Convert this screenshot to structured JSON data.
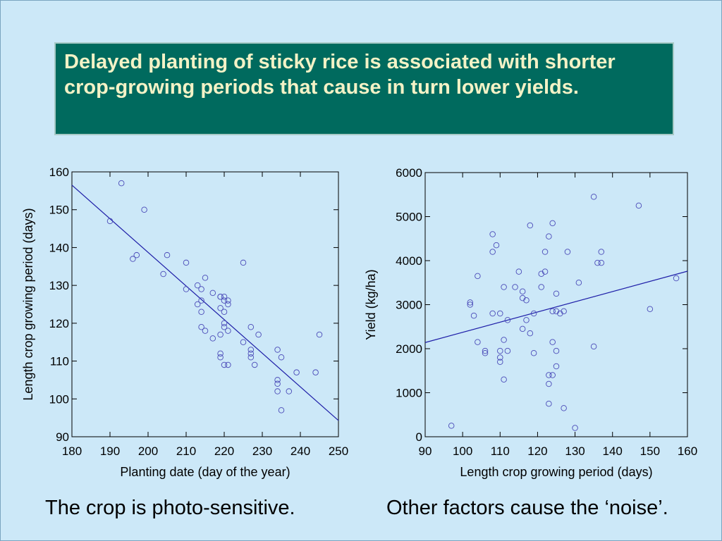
{
  "slide": {
    "title": "Delayed planting of sticky rice is associated with shorter crop-growing periods that cause in turn lower yields.",
    "caption_left": "The crop is photo-sensitive.",
    "caption_right": "Other factors cause the ‘noise’.",
    "colors": {
      "background": "#cce8f8",
      "title_box": "#006a5e",
      "title_text": "#f3f2c6",
      "marker": "#4a4ab8",
      "trend_line": "#1e1ea8"
    }
  },
  "chart_data": [
    {
      "type": "scatter",
      "title": "",
      "xlabel": "Planting date (day of the year)",
      "ylabel": "Length crop growing period (days)",
      "xlim": [
        180,
        250
      ],
      "ylim": [
        90,
        160
      ],
      "xticks": [
        180,
        190,
        200,
        210,
        220,
        230,
        240,
        250
      ],
      "yticks": [
        90,
        100,
        110,
        120,
        130,
        140,
        150,
        160
      ],
      "grid": false,
      "legend": "none",
      "marker": "open-circle",
      "trend_line": {
        "x": [
          180,
          250
        ],
        "y": [
          156.5,
          94.3
        ]
      },
      "points": [
        [
          190,
          147
        ],
        [
          193,
          157
        ],
        [
          196,
          137
        ],
        [
          197,
          138
        ],
        [
          199,
          150
        ],
        [
          204,
          133
        ],
        [
          205,
          138
        ],
        [
          210,
          136
        ],
        [
          210,
          129
        ],
        [
          213,
          130
        ],
        [
          213,
          125
        ],
        [
          214,
          126
        ],
        [
          214,
          123
        ],
        [
          214,
          129
        ],
        [
          214,
          119
        ],
        [
          215,
          132
        ],
        [
          215,
          118
        ],
        [
          217,
          128
        ],
        [
          217,
          116
        ],
        [
          219,
          127
        ],
        [
          219,
          127
        ],
        [
          219,
          124
        ],
        [
          219,
          117
        ],
        [
          219,
          112
        ],
        [
          219,
          111
        ],
        [
          220,
          127
        ],
        [
          220,
          126
        ],
        [
          220,
          123
        ],
        [
          220,
          120
        ],
        [
          220,
          119
        ],
        [
          220,
          109
        ],
        [
          221,
          126
        ],
        [
          221,
          125
        ],
        [
          221,
          118
        ],
        [
          221,
          109
        ],
        [
          225,
          136
        ],
        [
          225,
          115
        ],
        [
          227,
          119
        ],
        [
          227,
          113
        ],
        [
          227,
          112
        ],
        [
          227,
          111
        ],
        [
          228,
          109
        ],
        [
          229,
          117
        ],
        [
          234,
          113
        ],
        [
          234,
          105
        ],
        [
          234,
          104
        ],
        [
          234,
          102
        ],
        [
          235,
          111
        ],
        [
          235,
          97
        ],
        [
          237,
          102
        ],
        [
          239,
          107
        ],
        [
          244,
          107
        ],
        [
          245,
          117
        ]
      ]
    },
    {
      "type": "scatter",
      "title": "",
      "xlabel": "Length crop growing period (days)",
      "ylabel": "Yield (kg/ha)",
      "xlim": [
        90,
        160
      ],
      "ylim": [
        0,
        6000
      ],
      "xticks": [
        90,
        100,
        110,
        120,
        130,
        140,
        150,
        160
      ],
      "yticks": [
        0,
        1000,
        2000,
        3000,
        4000,
        5000,
        6000
      ],
      "grid": false,
      "legend": "none",
      "marker": "open-circle",
      "trend_line": {
        "x": [
          90,
          160
        ],
        "y": [
          2140,
          3760
        ]
      },
      "points": [
        [
          97,
          250
        ],
        [
          102,
          3000
        ],
        [
          102,
          3050
        ],
        [
          103,
          2750
        ],
        [
          104,
          3650
        ],
        [
          104,
          2150
        ],
        [
          106,
          1950
        ],
        [
          106,
          1900
        ],
        [
          108,
          2800
        ],
        [
          108,
          4600
        ],
        [
          108,
          4200
        ],
        [
          109,
          4350
        ],
        [
          110,
          2800
        ],
        [
          110,
          1950
        ],
        [
          110,
          1800
        ],
        [
          110,
          1700
        ],
        [
          111,
          3400
        ],
        [
          111,
          2200
        ],
        [
          111,
          1300
        ],
        [
          112,
          2650
        ],
        [
          112,
          1950
        ],
        [
          114,
          3400
        ],
        [
          115,
          3750
        ],
        [
          116,
          3300
        ],
        [
          116,
          3150
        ],
        [
          116,
          2450
        ],
        [
          117,
          3100
        ],
        [
          117,
          2650
        ],
        [
          118,
          4800
        ],
        [
          118,
          2350
        ],
        [
          119,
          2800
        ],
        [
          119,
          1900
        ],
        [
          121,
          3400
        ],
        [
          121,
          3700
        ],
        [
          122,
          3750
        ],
        [
          122,
          4200
        ],
        [
          123,
          4550
        ],
        [
          123,
          1400
        ],
        [
          123,
          1200
        ],
        [
          123,
          750
        ],
        [
          124,
          4850
        ],
        [
          124,
          2850
        ],
        [
          124,
          2150
        ],
        [
          124,
          1400
        ],
        [
          125,
          3250
        ],
        [
          125,
          2850
        ],
        [
          125,
          1950
        ],
        [
          125,
          1600
        ],
        [
          126,
          2800
        ],
        [
          127,
          2850
        ],
        [
          127,
          650
        ],
        [
          128,
          4200
        ],
        [
          130,
          200
        ],
        [
          131,
          3500
        ],
        [
          135,
          5450
        ],
        [
          135,
          2050
        ],
        [
          136,
          3950
        ],
        [
          137,
          4200
        ],
        [
          137,
          3950
        ],
        [
          147,
          5250
        ],
        [
          150,
          2900
        ],
        [
          157,
          3600
        ]
      ]
    }
  ]
}
